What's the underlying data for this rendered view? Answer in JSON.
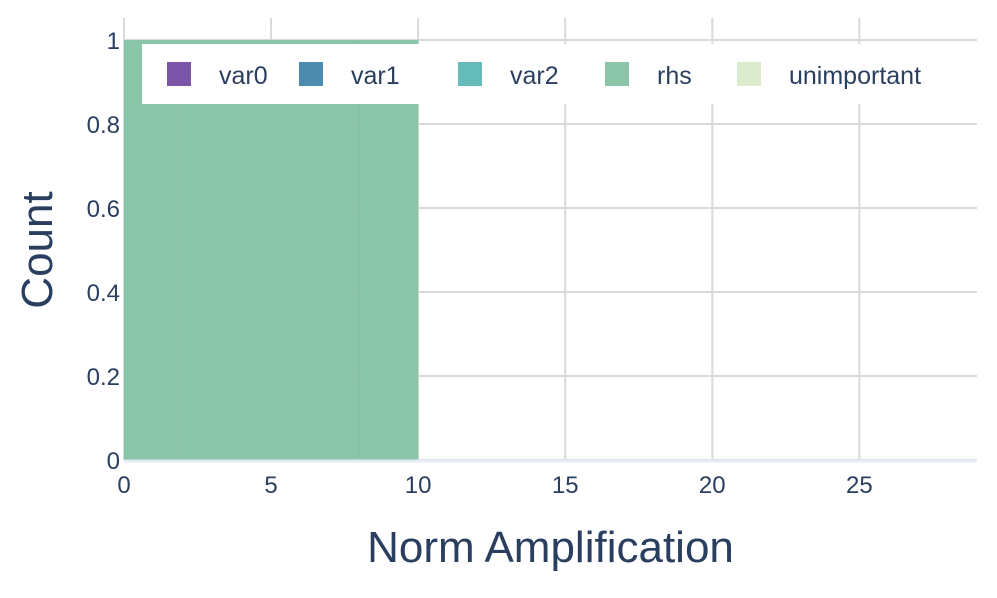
{
  "chart_data": {
    "type": "bar",
    "barmode": "overlay",
    "xlabel": "Norm Amplification",
    "ylabel": "Count",
    "xlim": [
      0,
      29
    ],
    "ylim": [
      0,
      1
    ],
    "x_ticks": [
      0,
      5,
      10,
      15,
      20,
      25
    ],
    "y_ticks": [
      0,
      0.2,
      0.4,
      0.6,
      0.8,
      1
    ],
    "y_tick_labels": [
      "0",
      "0.2",
      "0.4",
      "0.6",
      "0.8",
      "1"
    ],
    "grid": true,
    "legend_position": "top",
    "series": [
      {
        "name": "var0",
        "color": "#7a55a8",
        "opacity": 1.0,
        "bins": [
          [
            2,
            8,
            1
          ]
        ]
      },
      {
        "name": "var1",
        "color": "#2e78a0",
        "opacity": 0.8,
        "bins": [
          [
            2,
            8,
            1
          ]
        ]
      },
      {
        "name": "var2",
        "color": "#4aaeae",
        "opacity": 0.7,
        "bins": [
          [
            3,
            5,
            1
          ],
          [
            5.5,
            6.5,
            1
          ]
        ]
      },
      {
        "name": "rhs",
        "color": "#8ac5aa",
        "opacity": 1.0,
        "bins": [
          [
            0,
            2,
            1
          ],
          [
            8,
            10,
            1
          ],
          [
            2,
            8,
            1
          ]
        ]
      },
      {
        "name": "unimportant",
        "color": "#d4e8c6",
        "opacity": 0.6,
        "bins": []
      }
    ]
  }
}
